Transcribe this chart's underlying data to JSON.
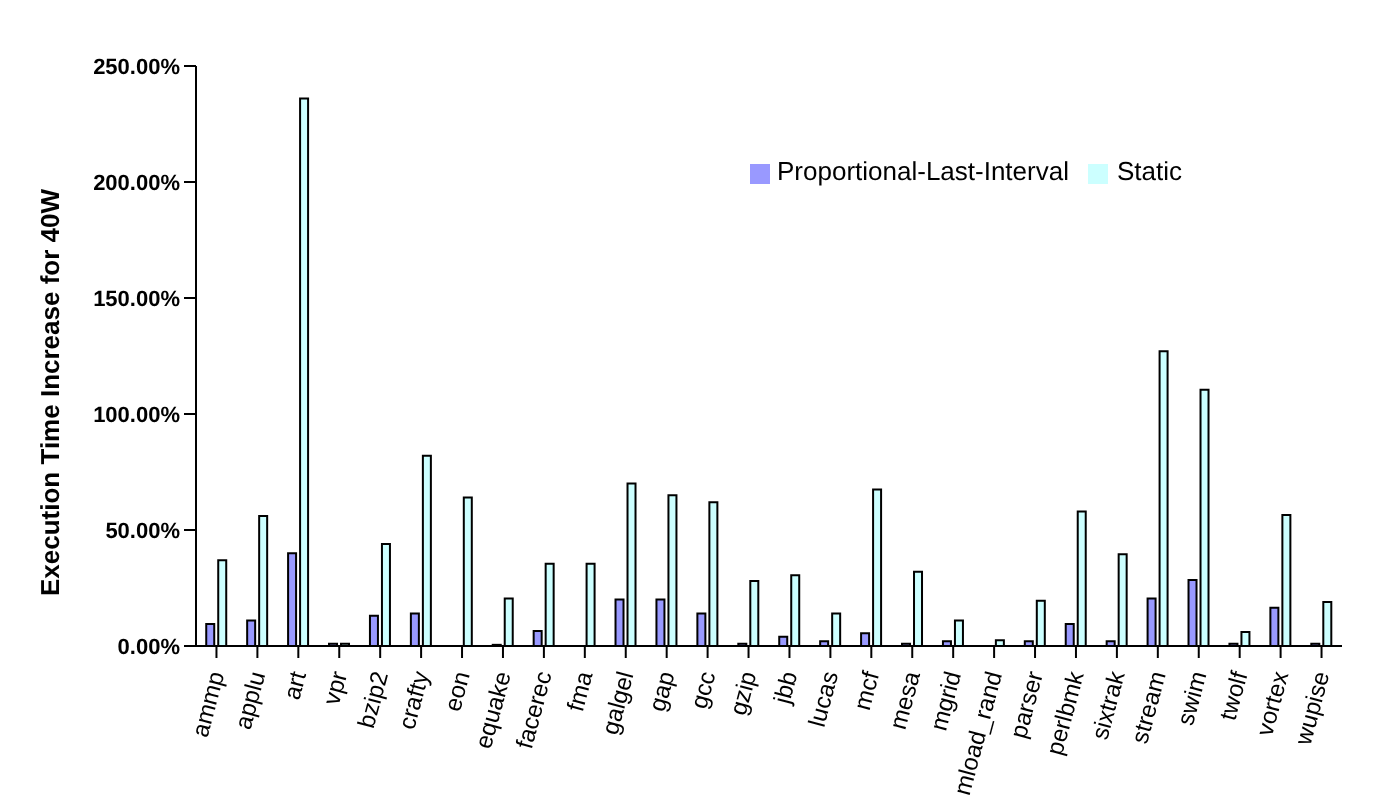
{
  "chart_data": {
    "type": "bar",
    "ylabel": "Execution Time Increase for 40W",
    "categories": [
      "ammp",
      "applu",
      "art",
      "vpr",
      "bzip2",
      "crafty",
      "eon",
      "equake",
      "facerec",
      "fma",
      "galgel",
      "gap",
      "gcc",
      "gzip",
      "jbb",
      "lucas",
      "mcf",
      "mesa",
      "mgrid",
      "mload_rand",
      "parser",
      "perlbmk",
      "sixtrak",
      "stream",
      "swim",
      "twolf",
      "vortex",
      "wupise"
    ],
    "series": [
      {
        "name": "Proportional-Last-Interval",
        "color": "#9999ff",
        "values": [
          9.5,
          11,
          40,
          1,
          13,
          14,
          0,
          0.5,
          6.5,
          0,
          20,
          20,
          14,
          1,
          4,
          2,
          5.5,
          1,
          2,
          0,
          2,
          9.5,
          2,
          20.5,
          28.5,
          1,
          16.5,
          1
        ]
      },
      {
        "name": "Static",
        "color": "#ccffff",
        "values": [
          37,
          56,
          236,
          1,
          44,
          82,
          64,
          20.5,
          35.5,
          35.5,
          70,
          65,
          62,
          28,
          30.5,
          14,
          67.5,
          32,
          11,
          2.5,
          19.5,
          58,
          39.5,
          127,
          110.5,
          6,
          56.5,
          19
        ]
      }
    ],
    "ylim": [
      0,
      250
    ],
    "yticks": [
      {
        "value": 0,
        "label": "0.00%"
      },
      {
        "value": 50,
        "label": "50.00%"
      },
      {
        "value": 100,
        "label": "100.00%"
      },
      {
        "value": 150,
        "label": "150.00%"
      },
      {
        "value": 200,
        "label": "200.00%"
      },
      {
        "value": 250,
        "label": "250.00%"
      }
    ],
    "grid": false,
    "legend": "top right"
  }
}
